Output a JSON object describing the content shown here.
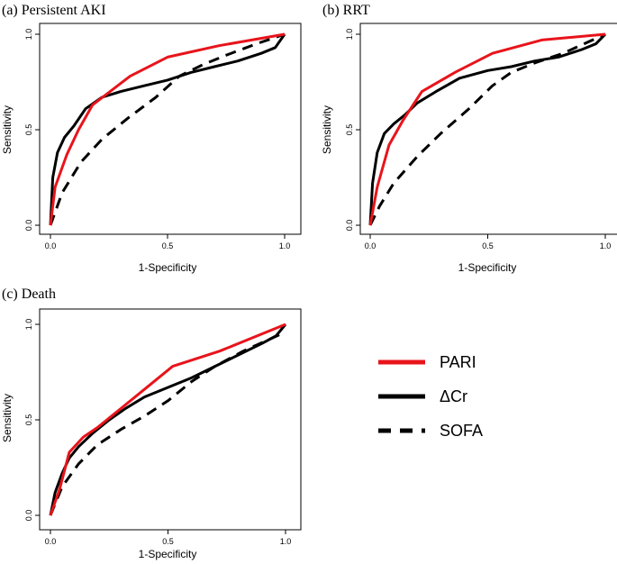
{
  "chart_data": [
    {
      "type": "line",
      "title": "(a) Persistent AKI",
      "xlabel": "1-Specificity",
      "ylabel": "Sensitivity",
      "xlim": [
        0,
        1
      ],
      "ylim": [
        0,
        1
      ],
      "x_ticks": [
        "0.0",
        "0.5",
        "1.0"
      ],
      "y_ticks": [
        "0.0",
        "0.5",
        "1.0"
      ],
      "series": [
        {
          "name": "PARI",
          "color": "#e8141b",
          "style": "solid",
          "x": [
            0,
            0.02,
            0.07,
            0.12,
            0.18,
            0.34,
            0.5,
            0.72,
            1.0
          ],
          "y": [
            0,
            0.2,
            0.37,
            0.5,
            0.63,
            0.78,
            0.88,
            0.94,
            1.0
          ]
        },
        {
          "name": "ΔCr",
          "color": "#000000",
          "style": "solid",
          "x": [
            0,
            0.01,
            0.03,
            0.06,
            0.1,
            0.15,
            0.22,
            0.3,
            0.4,
            0.5,
            0.6,
            0.7,
            0.8,
            0.9,
            0.96,
            1.0
          ],
          "y": [
            0,
            0.25,
            0.38,
            0.46,
            0.52,
            0.61,
            0.67,
            0.7,
            0.73,
            0.76,
            0.8,
            0.83,
            0.86,
            0.9,
            0.93,
            1.0
          ]
        },
        {
          "name": "SOFA",
          "color": "#000000",
          "style": "dashed",
          "x": [
            0,
            0.05,
            0.13,
            0.22,
            0.33,
            0.45,
            0.55,
            0.65,
            0.75,
            0.88,
            1.0
          ],
          "y": [
            0,
            0.17,
            0.33,
            0.45,
            0.56,
            0.67,
            0.78,
            0.84,
            0.89,
            0.95,
            1.0
          ]
        }
      ]
    },
    {
      "type": "line",
      "title": "(b) RRT",
      "xlabel": "1-Specificity",
      "ylabel": "Sensitivity",
      "xlim": [
        0,
        1
      ],
      "ylim": [
        0,
        1
      ],
      "x_ticks": [
        "0.0",
        "0.5",
        "1.0"
      ],
      "y_ticks": [
        "0.0",
        "0.5",
        "1.0"
      ],
      "series": [
        {
          "name": "PARI",
          "color": "#e8141b",
          "style": "solid",
          "x": [
            0,
            0.03,
            0.08,
            0.14,
            0.22,
            0.36,
            0.52,
            0.73,
            1.0
          ],
          "y": [
            0,
            0.2,
            0.42,
            0.55,
            0.7,
            0.8,
            0.9,
            0.97,
            1.0
          ]
        },
        {
          "name": "ΔCr",
          "color": "#000000",
          "style": "solid",
          "x": [
            0,
            0.01,
            0.03,
            0.06,
            0.1,
            0.15,
            0.2,
            0.28,
            0.38,
            0.5,
            0.6,
            0.7,
            0.8,
            0.9,
            0.96,
            1.0
          ],
          "y": [
            0,
            0.22,
            0.38,
            0.48,
            0.53,
            0.58,
            0.64,
            0.7,
            0.77,
            0.81,
            0.83,
            0.86,
            0.88,
            0.92,
            0.95,
            1.0
          ]
        },
        {
          "name": "SOFA",
          "color": "#000000",
          "style": "dashed",
          "x": [
            0,
            0.04,
            0.1,
            0.2,
            0.3,
            0.42,
            0.52,
            0.6,
            0.7,
            0.82,
            1.0
          ],
          "y": [
            0,
            0.1,
            0.22,
            0.36,
            0.48,
            0.61,
            0.73,
            0.8,
            0.85,
            0.9,
            1.0
          ]
        }
      ]
    },
    {
      "type": "line",
      "title": "(c) Death",
      "xlabel": "1-Specificity",
      "ylabel": "Sensitivity",
      "xlim": [
        0,
        1
      ],
      "ylim": [
        0,
        1
      ],
      "x_ticks": [
        "0.0",
        "0.5",
        "1.0"
      ],
      "y_ticks": [
        "0.0",
        "0.5",
        "1.0"
      ],
      "series": [
        {
          "name": "PARI",
          "color": "#e8141b",
          "style": "solid",
          "x": [
            0,
            0.04,
            0.08,
            0.14,
            0.2,
            0.36,
            0.52,
            0.72,
            1.0
          ],
          "y": [
            0,
            0.14,
            0.33,
            0.41,
            0.46,
            0.62,
            0.78,
            0.86,
            1.0
          ]
        },
        {
          "name": "ΔCr",
          "color": "#000000",
          "style": "solid",
          "x": [
            0,
            0.02,
            0.05,
            0.08,
            0.12,
            0.18,
            0.25,
            0.32,
            0.4,
            0.5,
            0.6,
            0.7,
            0.8,
            0.9,
            0.96,
            1.0
          ],
          "y": [
            0,
            0.12,
            0.22,
            0.3,
            0.36,
            0.43,
            0.5,
            0.56,
            0.62,
            0.67,
            0.72,
            0.78,
            0.84,
            0.9,
            0.94,
            1.0
          ]
        },
        {
          "name": "SOFA",
          "color": "#000000",
          "style": "dashed",
          "x": [
            0,
            0.05,
            0.12,
            0.2,
            0.3,
            0.4,
            0.5,
            0.6,
            0.7,
            0.82,
            1.0
          ],
          "y": [
            0,
            0.15,
            0.27,
            0.37,
            0.45,
            0.52,
            0.6,
            0.7,
            0.78,
            0.86,
            0.96
          ]
        }
      ]
    }
  ],
  "legend": {
    "entries": [
      {
        "label": "PARI",
        "color": "#e8141b",
        "style": "solid"
      },
      {
        "label": "ΔCr",
        "color": "#000000",
        "style": "solid"
      },
      {
        "label": "SOFA",
        "color": "#000000",
        "style": "dashed"
      }
    ]
  }
}
